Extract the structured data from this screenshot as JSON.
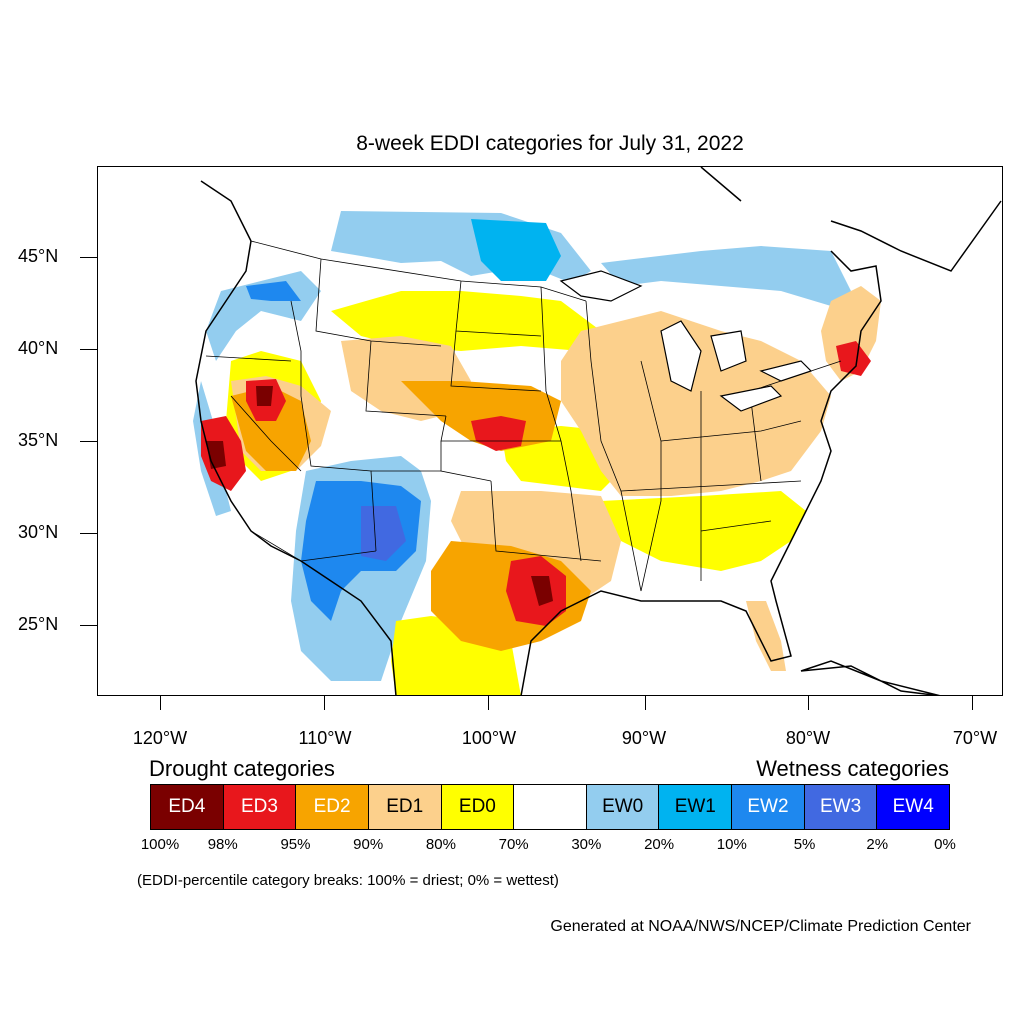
{
  "title": "8-week EDDI categories for July 31, 2022",
  "axes": {
    "latitude_labels": [
      "45°N",
      "40°N",
      "35°N",
      "30°N",
      "25°N"
    ],
    "longitude_labels": [
      "120°W",
      "110°W",
      "100°W",
      "90°W",
      "80°W",
      "70°W"
    ]
  },
  "legend": {
    "drought_title": "Drought categories",
    "wetness_title": "Wetness categories",
    "categories": [
      {
        "label": "ED4",
        "color": "#7a0000",
        "text_color": "#ffffff"
      },
      {
        "label": "ED3",
        "color": "#e8171c",
        "text_color": "#ffffff"
      },
      {
        "label": "ED2",
        "color": "#f7a400",
        "text_color": "#ffffff"
      },
      {
        "label": "ED1",
        "color": "#fcd08c",
        "text_color": "#000000"
      },
      {
        "label": "ED0",
        "color": "#ffff00",
        "text_color": "#000000"
      },
      {
        "label": "",
        "color": "#ffffff",
        "text_color": "#000000"
      },
      {
        "label": "EW0",
        "color": "#93cdef",
        "text_color": "#000000"
      },
      {
        "label": "EW1",
        "color": "#00b3f0",
        "text_color": "#000000"
      },
      {
        "label": "EW2",
        "color": "#1e88ef",
        "text_color": "#ffffff"
      },
      {
        "label": "EW3",
        "color": "#4169e1",
        "text_color": "#ffffff"
      },
      {
        "label": "EW4",
        "color": "#0000ff",
        "text_color": "#ffffff"
      }
    ],
    "percentile_breaks": [
      "100%",
      "98%",
      "95%",
      "90%",
      "80%",
      "70%",
      "30%",
      "20%",
      "10%",
      "5%",
      "2%",
      "0%"
    ]
  },
  "note": "(EDDI-percentile category breaks: 100% = driest; 0% = wettest)",
  "credit": "Generated at NOAA/NWS/NCEP/Climate Prediction Center"
}
